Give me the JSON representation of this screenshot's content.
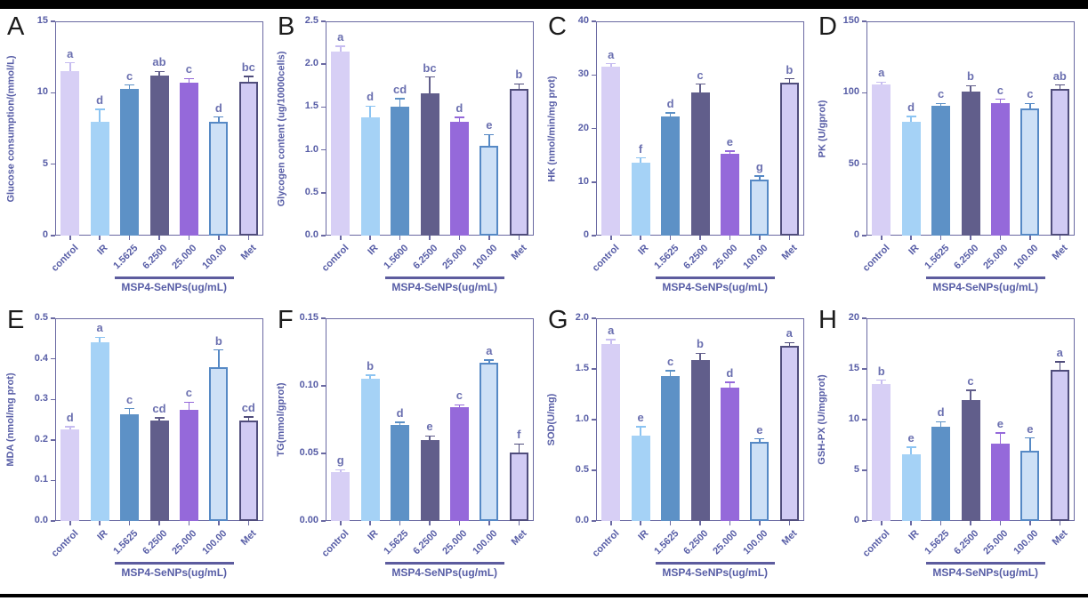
{
  "figure": {
    "background": "#ffffff",
    "top_bar_color": "#000000",
    "bottom_bar_color": "#000000",
    "axis_color": "#6a69a2",
    "text_color": "#575da6",
    "sig_letter_color": "#6b70b0",
    "group_line_color": "#5d5c9e",
    "group_label": "MSP4-SeNPs(ug/mL)",
    "group_underline_span": [
      2,
      5
    ],
    "bar_styles": [
      {
        "name": "control",
        "fill": "#d7cff5",
        "border": null,
        "err": "#c6bcf0"
      },
      {
        "name": "IR",
        "fill": "#a5d2f6",
        "border": null,
        "err": "#8cc4f2"
      },
      {
        "name": "dose-1",
        "fill": "#5d91c6",
        "border": null,
        "err": "#5d91c6"
      },
      {
        "name": "dose-2",
        "fill": "#615e8b",
        "border": null,
        "err": "#615e8b"
      },
      {
        "name": "dose-3",
        "fill": "#9569da",
        "border": null,
        "err": "#9569da"
      },
      {
        "name": "dose-4",
        "fill": "#cde0f6",
        "border": "#5689c5",
        "err": "#5689c5"
      },
      {
        "name": "Met",
        "fill": "#d1cbf4",
        "border": "#504d7c",
        "err": "#504d7c"
      }
    ]
  },
  "chart_data": [
    {
      "panel": "A",
      "type": "bar",
      "ylabel": "Glucose consumption/(mmol/L)",
      "ylim": [
        0,
        15
      ],
      "ytick_values": [
        0,
        5,
        10,
        15
      ],
      "ytick_labels": [
        "0",
        "5",
        "10",
        "15"
      ],
      "categories": [
        "control",
        "IR",
        "1.5625",
        "6.2500",
        "25.000",
        "100.00",
        "Met"
      ],
      "values": [
        11.5,
        8.0,
        10.3,
        11.2,
        10.7,
        8.0,
        10.8
      ],
      "errors": [
        0.6,
        0.85,
        0.25,
        0.3,
        0.3,
        0.3,
        0.35
      ],
      "letters": [
        "a",
        "d",
        "c",
        "ab",
        "c",
        "d",
        "bc"
      ]
    },
    {
      "panel": "B",
      "type": "bar",
      "ylabel": "Glycogen content (ug/10000cells)",
      "ylim": [
        0,
        2.5
      ],
      "ytick_values": [
        0,
        0.5,
        1.0,
        1.5,
        2.0,
        2.5
      ],
      "ytick_labels": [
        "0.0",
        "0.5",
        "1.0",
        "1.5",
        "2.0",
        "2.5"
      ],
      "categories": [
        "control",
        "IR",
        "1.5600",
        "6.2500",
        "25.000",
        "100.00",
        "Met"
      ],
      "values": [
        2.15,
        1.38,
        1.5,
        1.66,
        1.33,
        1.05,
        1.71
      ],
      "errors": [
        0.06,
        0.13,
        0.1,
        0.19,
        0.05,
        0.13,
        0.06
      ],
      "letters": [
        "a",
        "d",
        "cd",
        "bc",
        "d",
        "e",
        "b"
      ]
    },
    {
      "panel": "C",
      "type": "bar",
      "ylabel": "HK (nmol/min/mg prot)",
      "ylim": [
        0,
        40
      ],
      "ytick_values": [
        0,
        10,
        20,
        30,
        40
      ],
      "ytick_labels": [
        "0",
        "10",
        "20",
        "30",
        "40"
      ],
      "categories": [
        "control",
        "IR",
        "1.5625",
        "6.2500",
        "25.000",
        "100.00",
        "Met"
      ],
      "values": [
        31.5,
        13.7,
        22.2,
        26.8,
        15.3,
        10.5,
        28.5
      ],
      "errors": [
        0.6,
        0.8,
        0.7,
        1.5,
        0.5,
        0.6,
        0.8
      ],
      "letters": [
        "a",
        "f",
        "d",
        "c",
        "e",
        "g",
        "b"
      ]
    },
    {
      "panel": "D",
      "type": "bar",
      "ylabel": "PK (U/gprot)",
      "ylim": [
        0,
        150
      ],
      "ytick_values": [
        0,
        50,
        100,
        150
      ],
      "ytick_labels": [
        "0",
        "50",
        "100",
        "150"
      ],
      "categories": [
        "control",
        "IR",
        "1.5625",
        "6.2500",
        "25.000",
        "100.00",
        "Met"
      ],
      "values": [
        106,
        80,
        91,
        101,
        93,
        89,
        103
      ],
      "errors": [
        1.5,
        3.5,
        1.5,
        4,
        2.5,
        3.5,
        2.5
      ],
      "letters": [
        "a",
        "d",
        "c",
        "b",
        "c",
        "c",
        "ab"
      ]
    },
    {
      "panel": "E",
      "type": "bar",
      "ylabel": "MDA (nmol/mg prot)",
      "ylim": [
        0,
        0.5
      ],
      "ytick_values": [
        0,
        0.1,
        0.2,
        0.3,
        0.4,
        0.5
      ],
      "ytick_labels": [
        "0.0",
        "0.1",
        "0.2",
        "0.3",
        "0.4",
        "0.5"
      ],
      "categories": [
        "control",
        "IR",
        "1.5625",
        "6.2500",
        "25.000",
        "100.00",
        "Met"
      ],
      "values": [
        0.227,
        0.44,
        0.263,
        0.248,
        0.275,
        0.38,
        0.248
      ],
      "errors": [
        0.006,
        0.013,
        0.014,
        0.007,
        0.018,
        0.042,
        0.009
      ],
      "letters": [
        "d",
        "a",
        "c",
        "cd",
        "c",
        "b",
        "cd"
      ]
    },
    {
      "panel": "F",
      "type": "bar",
      "ylabel": "TG(mmol/gprot)",
      "ylim": [
        0,
        0.15
      ],
      "ytick_values": [
        0,
        0.05,
        0.1,
        0.15
      ],
      "ytick_labels": [
        "0.00",
        "0.05",
        "0.10",
        "0.15"
      ],
      "categories": [
        "control",
        "IR",
        "1.5625",
        "6.2500",
        "25.000",
        "100.00",
        "Met"
      ],
      "values": [
        0.036,
        0.105,
        0.071,
        0.06,
        0.084,
        0.117,
        0.051
      ],
      "errors": [
        0.002,
        0.003,
        0.002,
        0.003,
        0.002,
        0.002,
        0.006
      ],
      "letters": [
        "g",
        "b",
        "d",
        "e",
        "c",
        "a",
        "f"
      ]
    },
    {
      "panel": "G",
      "type": "bar",
      "ylabel": "SOD(U/mg)",
      "ylim": [
        0,
        2.0
      ],
      "ytick_values": [
        0,
        0.5,
        1.0,
        1.5,
        2.0
      ],
      "ytick_labels": [
        "0.0",
        "0.5",
        "1.0",
        "1.5",
        "2.0"
      ],
      "categories": [
        "control",
        "IR",
        "1.5625",
        "6.2500",
        "25.000",
        "100.00",
        "Met"
      ],
      "values": [
        1.75,
        0.84,
        1.43,
        1.59,
        1.32,
        0.78,
        1.73
      ],
      "errors": [
        0.04,
        0.09,
        0.055,
        0.065,
        0.05,
        0.03,
        0.03
      ],
      "letters": [
        "a",
        "e",
        "c",
        "b",
        "d",
        "e",
        "a"
      ]
    },
    {
      "panel": "H",
      "type": "bar",
      "ylabel": "GSH-PX (U/mgprot)",
      "ylim": [
        0,
        20
      ],
      "ytick_values": [
        0,
        5,
        10,
        15,
        20
      ],
      "ytick_labels": [
        "0",
        "5",
        "10",
        "15",
        "20"
      ],
      "categories": [
        "control",
        "IR",
        "1.5625",
        "6.2500",
        "25.000",
        "100.00",
        "Met"
      ],
      "values": [
        13.5,
        6.6,
        9.3,
        11.9,
        7.6,
        6.9,
        14.9
      ],
      "errors": [
        0.4,
        0.7,
        0.5,
        1.0,
        1.1,
        1.3,
        0.8
      ],
      "letters": [
        "b",
        "e",
        "d",
        "c",
        "e",
        "e",
        "a"
      ]
    }
  ]
}
